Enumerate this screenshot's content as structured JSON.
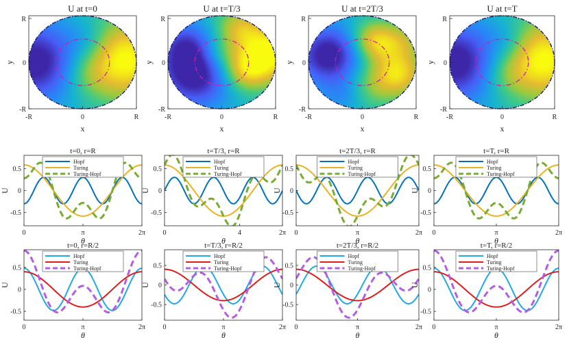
{
  "colors": {
    "hopf_row2": "#0072BD",
    "turing_row2": "#EDB120",
    "th_row2": "#77AC30",
    "hopf_row3": "#1FA8E8",
    "turing_row3": "#E01B1B",
    "th_row3": "#B45CE6",
    "circle": "#CC1FA8",
    "axes": "#262626",
    "boundary": "#1A1A6A"
  },
  "legend": [
    "Hopf",
    "Turing",
    "Turing-Hopf"
  ],
  "chart_data": {
    "heatmaps": [
      {
        "type": "heatmap",
        "title": "U at t=0",
        "xlabel": "x",
        "ylabel": "y",
        "xticks": [
          "-R",
          "0",
          "R"
        ],
        "yticks": [
          "R",
          "0",
          "-R"
        ],
        "colormap": "parula",
        "blobs": [
          [
            0.75,
            0.05,
            0.6,
            1.0
          ],
          [
            -0.85,
            0.0,
            0.6,
            -1.0
          ],
          [
            0.05,
            -0.3,
            0.3,
            0.2
          ],
          [
            0.1,
            0.5,
            0.3,
            -0.25
          ]
        ]
      },
      {
        "type": "heatmap",
        "title": "U at t=T/3",
        "xlabel": "x",
        "ylabel": "y",
        "xticks": [
          "-R",
          "0",
          "R"
        ],
        "yticks": [
          "R",
          "0",
          "-R"
        ],
        "colormap": "parula",
        "blobs": [
          [
            0.85,
            0.2,
            0.45,
            1.0
          ],
          [
            -0.5,
            -0.25,
            0.5,
            -1.0
          ],
          [
            0.4,
            -0.2,
            0.3,
            0.6
          ],
          [
            -0.7,
            0.4,
            0.35,
            -0.5
          ],
          [
            0.3,
            0.75,
            0.3,
            0.5
          ],
          [
            -0.05,
            0.2,
            0.25,
            0.3
          ]
        ]
      },
      {
        "type": "heatmap",
        "title": "U at t=2T/3",
        "xlabel": "x",
        "ylabel": "y",
        "xticks": [
          "-R",
          "0",
          "R"
        ],
        "yticks": [
          "R",
          "0",
          "-R"
        ],
        "colormap": "parula",
        "blobs": [
          [
            -0.6,
            0.15,
            0.45,
            -1.0
          ],
          [
            0.2,
            0.45,
            0.3,
            0.8
          ],
          [
            0.65,
            -0.25,
            0.35,
            0.8
          ],
          [
            0.0,
            -0.55,
            0.35,
            0.4
          ],
          [
            0.75,
            0.45,
            0.3,
            0.4
          ],
          [
            -0.3,
            -0.7,
            0.3,
            -0.4
          ]
        ]
      },
      {
        "type": "heatmap",
        "title": "U at t=T",
        "xlabel": "x",
        "ylabel": "y",
        "xticks": [
          "-R",
          "0",
          "R"
        ],
        "yticks": [
          "R",
          "0",
          "-R"
        ],
        "colormap": "parula",
        "blobs": [
          [
            0.75,
            0.05,
            0.6,
            1.0
          ],
          [
            -0.85,
            0.0,
            0.6,
            -1.0
          ],
          [
            0.05,
            -0.3,
            0.3,
            0.2
          ],
          [
            0.1,
            0.5,
            0.3,
            -0.25
          ]
        ]
      }
    ],
    "lines_r_R": [
      {
        "type": "line",
        "title": "t=0, r=R",
        "xlabel": "θ",
        "ylabel": "U",
        "xlim": [
          0,
          6.2832
        ],
        "ylim": [
          -0.8,
          0.8
        ],
        "xticks": [
          {
            "v": 0,
            "l": "0"
          },
          {
            "v": 3.1416,
            "l": "π"
          },
          {
            "v": 6.2832,
            "l": "2π"
          }
        ],
        "yticks": [
          0.5,
          0,
          -0.5
        ],
        "series": [
          {
            "name": "Hopf",
            "amp": 0.3,
            "k": 3,
            "phase": 3.1416
          },
          {
            "name": "Turing",
            "amp": 0.58,
            "k": 1,
            "phase": 0
          },
          {
            "name": "Turing-Hopf",
            "amp": [
              0.3,
              0.58
            ],
            "k": [
              3,
              1
            ],
            "phase": [
              3.1416,
              0
            ]
          }
        ]
      },
      {
        "type": "line",
        "title": "t=T/3, r=R",
        "xlabel": "θ",
        "ylabel": "U",
        "xlim": [
          0,
          6.2832
        ],
        "ylim": [
          -0.8,
          0.8
        ],
        "xticks": [
          {
            "v": 0,
            "l": "0"
          },
          {
            "v": 4,
            "l": "4"
          },
          {
            "v": 6.2832,
            "l": "2π"
          }
        ],
        "yticks": [
          0.5,
          0,
          -0.5
        ],
        "series": [
          {
            "name": "Hopf",
            "amp": 0.3,
            "k": 3,
            "phase": 4.71
          },
          {
            "name": "Turing",
            "amp": 0.58,
            "k": 1,
            "phase": 0
          },
          {
            "name": "Turing-Hopf",
            "amp": [
              0.3,
              0.58
            ],
            "k": [
              3,
              1
            ],
            "phase": [
              4.71,
              0
            ]
          }
        ]
      },
      {
        "type": "line",
        "title": "t=2T/3, r=R",
        "xlabel": "θ",
        "ylabel": "U",
        "xlim": [
          0,
          6.2832
        ],
        "ylim": [
          -0.8,
          0.8
        ],
        "xticks": [
          {
            "v": 0,
            "l": "0"
          },
          {
            "v": 3.1416,
            "l": "π"
          },
          {
            "v": 6.2832,
            "l": "2π"
          }
        ],
        "yticks": [
          0.5,
          0,
          -0.5
        ],
        "series": [
          {
            "name": "Hopf",
            "amp": 0.3,
            "k": 3,
            "phase": 1.57
          },
          {
            "name": "Turing",
            "amp": 0.58,
            "k": 1,
            "phase": 0
          },
          {
            "name": "Turing-Hopf",
            "amp": [
              0.3,
              0.58
            ],
            "k": [
              3,
              1
            ],
            "phase": [
              1.57,
              0
            ]
          }
        ]
      },
      {
        "type": "line",
        "title": "t=T, r=R",
        "xlabel": "θ",
        "ylabel": "U",
        "xlim": [
          0,
          6.2832
        ],
        "ylim": [
          -0.8,
          0.8
        ],
        "xticks": [
          {
            "v": 0,
            "l": "0"
          },
          {
            "v": 3.1416,
            "l": "π"
          },
          {
            "v": 6.2832,
            "l": "2π"
          }
        ],
        "yticks": [
          0.5,
          0,
          -0.5
        ],
        "series": [
          {
            "name": "Hopf",
            "amp": 0.3,
            "k": 3,
            "phase": 3.1416
          },
          {
            "name": "Turing",
            "amp": 0.58,
            "k": 1,
            "phase": 0
          },
          {
            "name": "Turing-Hopf",
            "amp": [
              0.3,
              0.58
            ],
            "k": [
              3,
              1
            ],
            "phase": [
              3.1416,
              0
            ]
          }
        ]
      }
    ],
    "lines_r_R2": [
      {
        "type": "line",
        "title": "t=0, r=R/2",
        "xlabel": "θ",
        "ylabel": "U",
        "xlim": [
          0,
          6.2832
        ],
        "ylim": [
          -0.7,
          0.9
        ],
        "xticks": [
          {
            "v": 0,
            "l": "0"
          },
          {
            "v": 3.1416,
            "l": "π"
          },
          {
            "v": 6.2832,
            "l": "2π"
          }
        ],
        "yticks": [
          0.5,
          0,
          -0.5
        ],
        "series": [
          {
            "name": "Hopf",
            "amp": 0.48,
            "k": 2,
            "phase": 0
          },
          {
            "name": "Turing",
            "amp": 0.4,
            "k": 1,
            "phase": 0
          },
          {
            "name": "Turing-Hopf",
            "amp": [
              0.48,
              0.4
            ],
            "k": [
              2,
              1
            ],
            "phase": [
              0,
              0
            ]
          }
        ]
      },
      {
        "type": "line",
        "title": "t=T/3, r=R/2",
        "xlabel": "θ",
        "ylabel": "U",
        "xlim": [
          0,
          6.2832
        ],
        "ylim": [
          -0.9,
          0.9
        ],
        "xticks": [
          {
            "v": 0,
            "l": "0"
          },
          {
            "v": 3.1416,
            "l": "π"
          },
          {
            "v": 6.2832,
            "l": "2π"
          }
        ],
        "yticks": [
          0.5,
          0,
          -0.5
        ],
        "series": [
          {
            "name": "Hopf",
            "amp": 0.48,
            "k": 2,
            "phase": 2.1
          },
          {
            "name": "Turing",
            "amp": 0.4,
            "k": 1,
            "phase": 0
          },
          {
            "name": "Turing-Hopf",
            "amp": [
              0.48,
              0.4
            ],
            "k": [
              2,
              1
            ],
            "phase": [
              2.1,
              0
            ]
          }
        ]
      },
      {
        "type": "line",
        "title": "t=2T/3, r=R/2",
        "xlabel": "θ",
        "ylabel": "U",
        "xlim": [
          0,
          6.2832
        ],
        "ylim": [
          -0.9,
          0.9
        ],
        "xticks": [
          {
            "v": 0,
            "l": "0"
          },
          {
            "v": 3.1416,
            "l": "π"
          },
          {
            "v": 6.2832,
            "l": "2π"
          }
        ],
        "yticks": [
          0.5,
          0,
          -0.5
        ],
        "series": [
          {
            "name": "Hopf",
            "amp": 0.48,
            "k": 2,
            "phase": 4.2
          },
          {
            "name": "Turing",
            "amp": 0.4,
            "k": 1,
            "phase": 0
          },
          {
            "name": "Turing-Hopf",
            "amp": [
              0.48,
              0.4
            ],
            "k": [
              2,
              1
            ],
            "phase": [
              4.2,
              0
            ]
          }
        ]
      },
      {
        "type": "line",
        "title": "t=T, r=R/2",
        "xlabel": "θ",
        "ylabel": "U",
        "xlim": [
          0,
          6.2832
        ],
        "ylim": [
          -0.7,
          0.9
        ],
        "xticks": [
          {
            "v": 0,
            "l": "0"
          },
          {
            "v": 3.1416,
            "l": "π"
          },
          {
            "v": 6.2832,
            "l": "2π"
          }
        ],
        "yticks": [
          0.5,
          0,
          -0.5
        ],
        "series": [
          {
            "name": "Hopf",
            "amp": 0.48,
            "k": 2,
            "phase": 0
          },
          {
            "name": "Turing",
            "amp": 0.4,
            "k": 1,
            "phase": 0
          },
          {
            "name": "Turing-Hopf",
            "amp": [
              0.48,
              0.4
            ],
            "k": [
              2,
              1
            ],
            "phase": [
              0,
              0
            ]
          }
        ]
      }
    ]
  }
}
